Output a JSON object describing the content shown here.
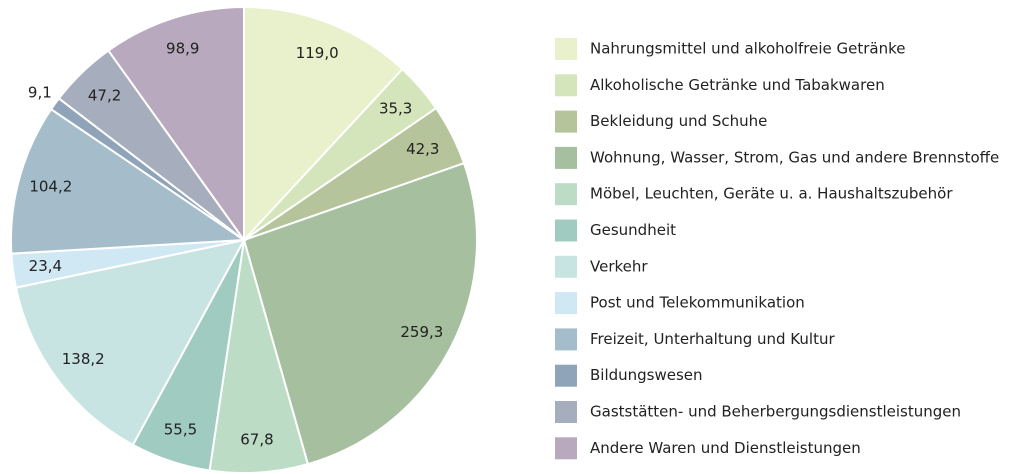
{
  "chart_data": {
    "type": "pie",
    "categories": [
      "Nahrungsmittel und alkoholfreie Getränke",
      "Alkoholische Getränke und Tabakwaren",
      "Bekleidung und Schuhe",
      "Wohnung, Wasser, Strom, Gas und andere Brennstoffe",
      "Möbel, Leuchten, Geräte u. a. Haushaltszubehör",
      "Gesundheit",
      "Verkehr",
      "Post und Telekommunikation",
      "Freizeit, Unterhaltung und Kultur",
      "Bildungswesen",
      "Gaststätten- und Beherbergungsdienstleistungen",
      "Andere Waren und Dienstleistungen"
    ],
    "values": [
      119.0,
      35.3,
      42.3,
      259.3,
      67.8,
      55.5,
      138.2,
      23.4,
      104.2,
      9.1,
      47.2,
      98.9
    ],
    "value_labels": [
      "119,0",
      "35,3",
      "42,3",
      "259,3",
      "67,8",
      "55,5",
      "138,2",
      "23,4",
      "104,2",
      "9,1",
      "47,2",
      "98,9"
    ],
    "colors": [
      "#e8f0cc",
      "#d5e5bb",
      "#b5c49a",
      "#a5bf9f",
      "#bcdcc6",
      "#a0cbc0",
      "#c8e4e2",
      "#d0e8f4",
      "#a5bccb",
      "#8fa4b8",
      "#a6adbc",
      "#b9a9bf"
    ],
    "legend": "right"
  }
}
